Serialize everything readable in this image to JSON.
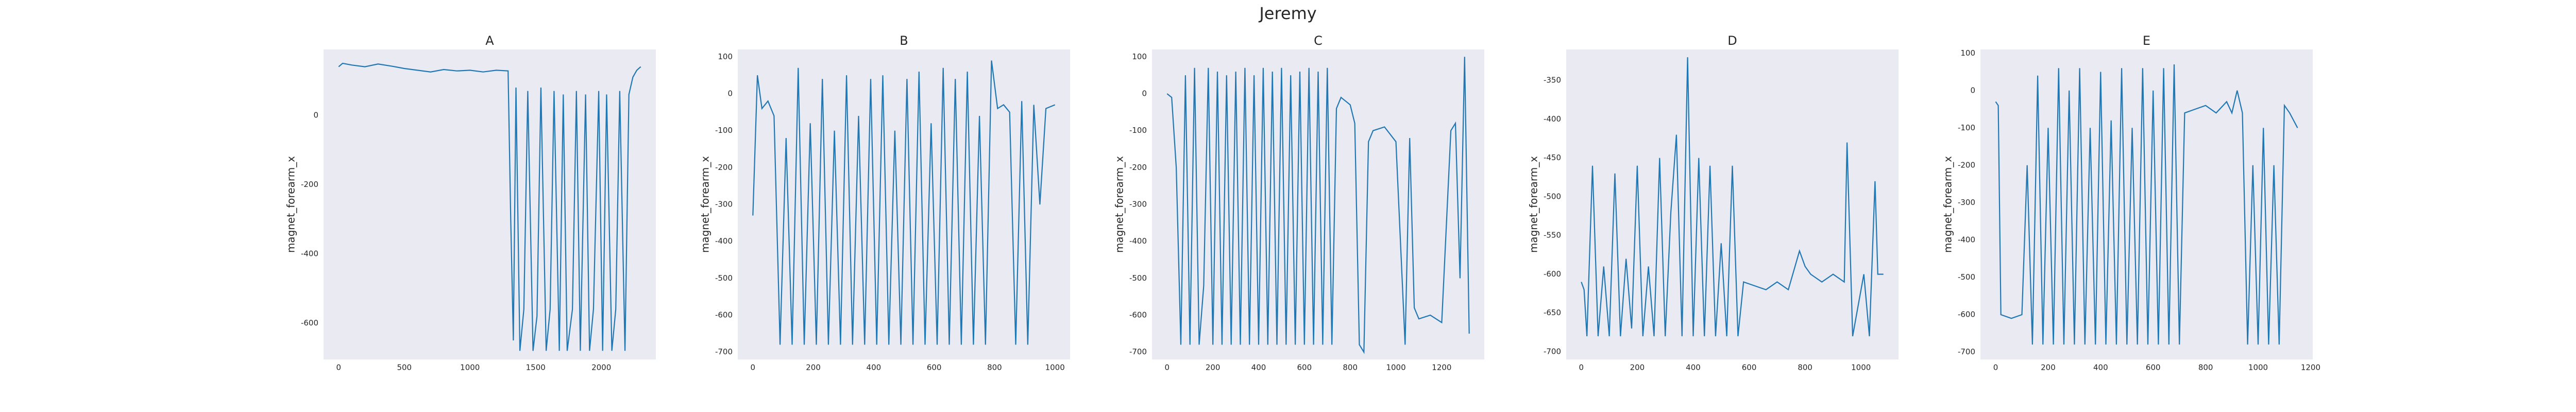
{
  "title": "Jeremy",
  "chart_data": [
    {
      "type": "line",
      "title": "A",
      "y_label": "magnet_forearm_x",
      "color": "#1f77b4",
      "xlim": [
        -115,
        2415
      ],
      "ylim": [
        -705,
        190
      ],
      "xticks": [
        0,
        500,
        1000,
        1500,
        2000
      ],
      "yticks": [
        0,
        -200,
        -400,
        -600
      ],
      "x": [
        0,
        30,
        100,
        200,
        300,
        400,
        500,
        600,
        700,
        800,
        900,
        1000,
        1100,
        1200,
        1290,
        1310,
        1330,
        1350,
        1380,
        1410,
        1440,
        1480,
        1510,
        1540,
        1580,
        1610,
        1640,
        1680,
        1710,
        1740,
        1780,
        1810,
        1840,
        1880,
        1910,
        1940,
        1980,
        2010,
        2040,
        2080,
        2110,
        2140,
        2180,
        2210,
        2240,
        2270,
        2300
      ],
      "values": [
        140,
        150,
        145,
        140,
        148,
        142,
        135,
        130,
        125,
        132,
        128,
        130,
        125,
        130,
        128,
        -300,
        -650,
        80,
        -680,
        -560,
        70,
        -680,
        -580,
        80,
        -680,
        -560,
        70,
        -680,
        60,
        -680,
        -560,
        70,
        -680,
        60,
        -680,
        -560,
        70,
        -680,
        60,
        -680,
        -560,
        70,
        -680,
        60,
        110,
        130,
        140
      ]
    },
    {
      "type": "line",
      "title": "B",
      "y_label": "magnet_forearm_x",
      "color": "#1f77b4",
      "xlim": [
        -50,
        1050
      ],
      "ylim": [
        -720,
        120
      ],
      "xticks": [
        0,
        200,
        400,
        600,
        800,
        1000
      ],
      "yticks": [
        100,
        0,
        -100,
        -200,
        -300,
        -400,
        -500,
        -600,
        -700
      ],
      "x": [
        0,
        15,
        30,
        50,
        70,
        90,
        110,
        130,
        150,
        170,
        190,
        210,
        230,
        250,
        270,
        290,
        310,
        330,
        350,
        370,
        390,
        410,
        430,
        450,
        470,
        490,
        510,
        530,
        550,
        570,
        590,
        610,
        630,
        650,
        670,
        690,
        710,
        730,
        750,
        770,
        790,
        810,
        830,
        850,
        870,
        890,
        910,
        930,
        950,
        970,
        1000
      ],
      "values": [
        -330,
        50,
        -40,
        -20,
        -60,
        -680,
        -120,
        -680,
        70,
        -680,
        -80,
        -680,
        40,
        -680,
        -100,
        -680,
        50,
        -680,
        -60,
        -680,
        40,
        -680,
        50,
        -680,
        -100,
        -680,
        40,
        -680,
        60,
        -680,
        -80,
        -680,
        70,
        -680,
        40,
        -680,
        60,
        -680,
        -60,
        -680,
        90,
        -40,
        -30,
        -50,
        -680,
        -20,
        -680,
        -30,
        -300,
        -40,
        -30
      ]
    },
    {
      "type": "line",
      "title": "C",
      "y_label": "magnet_forearm_x",
      "color": "#1f77b4",
      "xlim": [
        -66,
        1386
      ],
      "ylim": [
        -720,
        120
      ],
      "xticks": [
        0,
        200,
        400,
        600,
        800,
        1000,
        1200
      ],
      "yticks": [
        100,
        0,
        -100,
        -200,
        -300,
        -400,
        -500,
        -600,
        -700
      ],
      "x": [
        0,
        20,
        40,
        60,
        80,
        100,
        120,
        140,
        160,
        180,
        200,
        220,
        240,
        260,
        280,
        300,
        320,
        340,
        360,
        380,
        400,
        420,
        440,
        460,
        480,
        500,
        520,
        540,
        560,
        580,
        600,
        620,
        640,
        660,
        680,
        700,
        720,
        740,
        760,
        780,
        800,
        820,
        840,
        860,
        880,
        900,
        950,
        1000,
        1040,
        1060,
        1080,
        1100,
        1150,
        1200,
        1240,
        1260,
        1280,
        1300,
        1320
      ],
      "values": [
        0,
        -10,
        -200,
        -680,
        50,
        -680,
        70,
        -680,
        -520,
        70,
        -680,
        60,
        -680,
        50,
        -680,
        60,
        -680,
        70,
        -680,
        50,
        -680,
        70,
        -680,
        60,
        -680,
        70,
        -680,
        50,
        -680,
        60,
        -680,
        70,
        -680,
        60,
        -680,
        70,
        -680,
        -40,
        -10,
        -20,
        -30,
        -80,
        -680,
        -700,
        -130,
        -100,
        -90,
        -130,
        -680,
        -120,
        -580,
        -610,
        -600,
        -620,
        -100,
        -80,
        -500,
        100,
        -650
      ]
    },
    {
      "type": "line",
      "title": "D",
      "y_label": "magnet_forearm_x",
      "color": "#1f77b4",
      "xlim": [
        -54,
        1134
      ],
      "ylim": [
        -710,
        -310
      ],
      "xticks": [
        0,
        200,
        400,
        600,
        800,
        1000
      ],
      "yticks": [
        -350,
        -400,
        -450,
        -500,
        -550,
        -600,
        -650,
        -700
      ],
      "x": [
        0,
        10,
        20,
        40,
        60,
        80,
        100,
        120,
        140,
        160,
        180,
        200,
        220,
        240,
        260,
        280,
        300,
        320,
        340,
        360,
        380,
        400,
        420,
        440,
        460,
        480,
        500,
        520,
        540,
        560,
        580,
        620,
        660,
        700,
        740,
        780,
        800,
        820,
        860,
        900,
        940,
        950,
        970,
        990,
        1010,
        1030,
        1050,
        1060,
        1080
      ],
      "values": [
        -610,
        -620,
        -680,
        -460,
        -680,
        -590,
        -680,
        -470,
        -680,
        -580,
        -670,
        -460,
        -680,
        -590,
        -680,
        -450,
        -680,
        -520,
        -420,
        -680,
        -320,
        -680,
        -450,
        -680,
        -460,
        -680,
        -560,
        -680,
        -460,
        -680,
        -610,
        -615,
        -620,
        -610,
        -620,
        -570,
        -590,
        -600,
        -610,
        -600,
        -610,
        -430,
        -680,
        -640,
        -600,
        -680,
        -480,
        -600,
        -600
      ]
    },
    {
      "type": "line",
      "title": "E",
      "y_label": "magnet_forearm_x",
      "color": "#1f77b4",
      "xlim": [
        -58,
        1208
      ],
      "ylim": [
        -720,
        110
      ],
      "xticks": [
        0,
        200,
        400,
        600,
        800,
        1000,
        1200
      ],
      "yticks": [
        100,
        0,
        -100,
        -200,
        -300,
        -400,
        -500,
        -600,
        -700
      ],
      "x": [
        0,
        10,
        20,
        60,
        100,
        120,
        140,
        160,
        180,
        200,
        220,
        240,
        260,
        280,
        300,
        320,
        340,
        360,
        380,
        400,
        420,
        440,
        460,
        480,
        500,
        520,
        540,
        560,
        580,
        600,
        620,
        640,
        660,
        680,
        700,
        720,
        760,
        800,
        840,
        880,
        900,
        920,
        940,
        960,
        980,
        1000,
        1020,
        1040,
        1060,
        1080,
        1100,
        1120,
        1150
      ],
      "values": [
        -30,
        -40,
        -600,
        -610,
        -600,
        -200,
        -680,
        40,
        -680,
        -100,
        -680,
        60,
        -680,
        0,
        -680,
        60,
        -680,
        -100,
        -680,
        50,
        -680,
        -80,
        -680,
        60,
        -680,
        -100,
        -680,
        60,
        -680,
        0,
        -680,
        60,
        -680,
        70,
        -680,
        -60,
        -50,
        -40,
        -60,
        -30,
        -60,
        0,
        -60,
        -680,
        -200,
        -680,
        -100,
        -680,
        -200,
        -680,
        -40,
        -60,
        -100
      ]
    }
  ]
}
